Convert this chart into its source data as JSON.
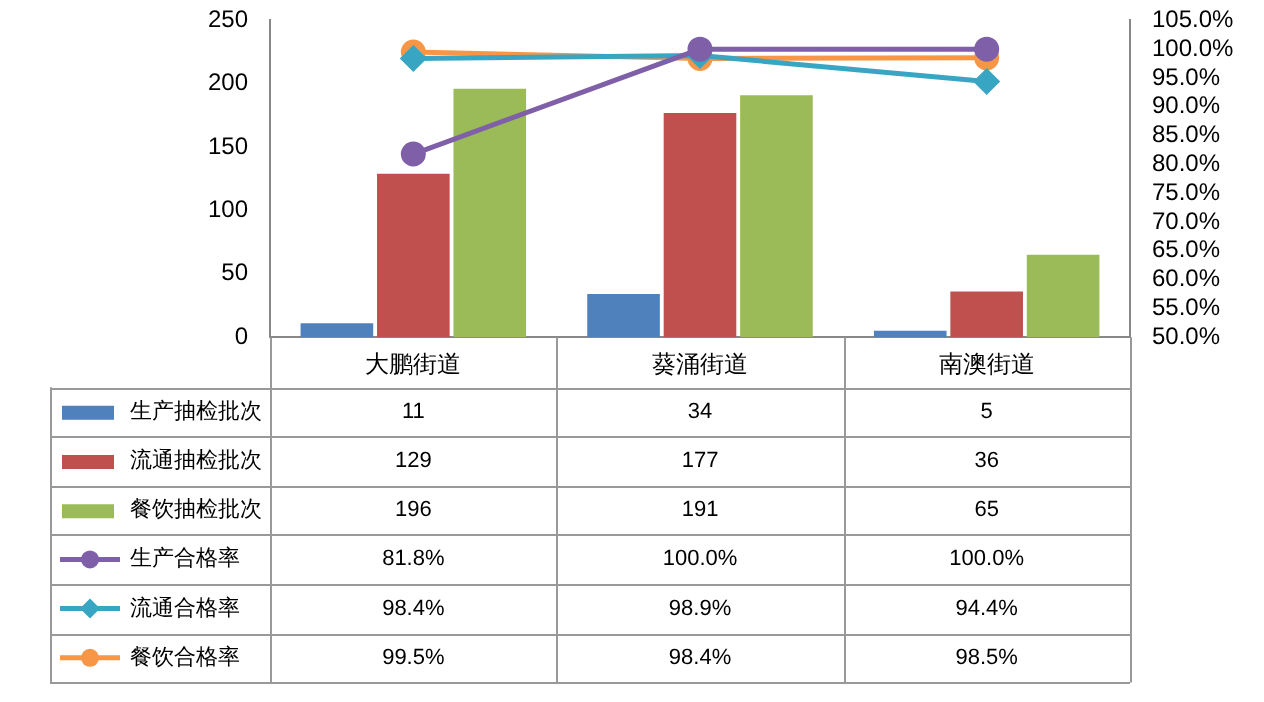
{
  "chart_data": {
    "type": "bar",
    "categories": [
      "大鹏街道",
      "葵涌街道",
      "南澳街道"
    ],
    "series": [
      {
        "name": "生产抽检批次",
        "color": "#4f81bd",
        "values": [
          11,
          34,
          5
        ],
        "value_labels": [
          "11",
          "34",
          "5"
        ]
      },
      {
        "name": "流通抽检批次",
        "color": "#c0504d",
        "values": [
          129,
          177,
          36
        ],
        "value_labels": [
          "129",
          "177",
          "36"
        ]
      },
      {
        "name": "餐饮抽检批次",
        "color": "#9bbb59",
        "values": [
          196,
          191,
          65
        ],
        "value_labels": [
          "196",
          "191",
          "65"
        ]
      },
      {
        "name": "生产合格率",
        "type": "line",
        "axis": "y2",
        "marker": "circle",
        "color": "#7f60a8",
        "values": [
          81.8,
          100.0,
          100.0
        ],
        "value_labels": [
          "81.8%",
          "100.0%",
          "100.0%"
        ]
      },
      {
        "name": "流通合格率",
        "type": "line",
        "axis": "y2",
        "marker": "diamond",
        "color": "#38a6c3",
        "values": [
          98.4,
          98.9,
          94.4
        ],
        "value_labels": [
          "98.4%",
          "98.9%",
          "94.4%"
        ]
      },
      {
        "name": "餐饮合格率",
        "type": "line",
        "axis": "y2",
        "marker": "circle",
        "color": "#f79646",
        "values": [
          99.5,
          98.4,
          98.5
        ],
        "value_labels": [
          "99.5%",
          "98.4%",
          "98.5%"
        ]
      }
    ],
    "ylim": [
      0,
      250
    ],
    "yticks": [
      0,
      50,
      100,
      150,
      200,
      250
    ],
    "y2lim": [
      50,
      105
    ],
    "y2ticks": [
      {
        "value": 50,
        "label": "50.0%"
      },
      {
        "value": 55,
        "label": "55.0%"
      },
      {
        "value": 60,
        "label": "60.0%"
      },
      {
        "value": 65,
        "label": "65.0%"
      },
      {
        "value": 70,
        "label": "70.0%"
      },
      {
        "value": 75,
        "label": "75.0%"
      },
      {
        "value": 80,
        "label": "80.0%"
      },
      {
        "value": 85,
        "label": "85.0%"
      },
      {
        "value": 90,
        "label": "90.0%"
      },
      {
        "value": 95,
        "label": "95.0%"
      },
      {
        "value": 100,
        "label": "100.0%"
      },
      {
        "value": 105,
        "label": "105.0%"
      }
    ],
    "legend": "bottom"
  }
}
